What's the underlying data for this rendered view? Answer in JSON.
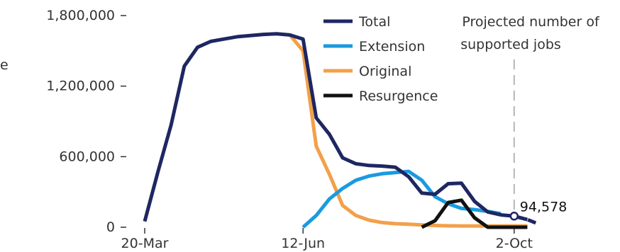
{
  "chart_data": {
    "type": "line",
    "x": [
      "20-Mar",
      "27-Mar",
      "03-Apr",
      "10-Apr",
      "17-Apr",
      "24-Apr",
      "01-May",
      "08-May",
      "15-May",
      "22-May",
      "29-May",
      "05-Jun",
      "12-Jun",
      "19-Jun",
      "26-Jun",
      "03-Jul",
      "10-Jul",
      "17-Jul",
      "24-Jul",
      "31-Jul",
      "07-Aug",
      "14-Aug",
      "21-Aug",
      "28-Aug",
      "04-Sep",
      "11-Sep",
      "18-Sep",
      "25-Sep",
      "02-Oct",
      "09-Oct",
      "16-Oct"
    ],
    "x_tick_labels": [
      "20-Mar",
      "12-Jun",
      "2-Oct"
    ],
    "ylim": [
      0,
      1800000
    ],
    "y_ticks": [
      0,
      600000,
      1200000,
      1800000
    ],
    "y_tick_labels": [
      "0",
      "600,000",
      "1,200,000",
      "1,800,000"
    ],
    "ylabel_fragment": "e",
    "series": [
      {
        "name": "Total",
        "color": "#1e2761",
        "style": "solid",
        "values": [
          50000,
          470000,
          870000,
          1370000,
          1530000,
          1580000,
          1600000,
          1620000,
          1630000,
          1640000,
          1645000,
          1635000,
          1600000,
          930000,
          790000,
          590000,
          540000,
          525000,
          520000,
          510000,
          430000,
          290000,
          280000,
          370000,
          375000,
          220000,
          130000,
          105000,
          94578,
          65000,
          null
        ]
      },
      {
        "name": "Extension",
        "color": "#1a9ae0",
        "style": "solid",
        "values": [
          null,
          null,
          null,
          null,
          null,
          null,
          null,
          null,
          null,
          null,
          null,
          null,
          0,
          100000,
          240000,
          330000,
          400000,
          435000,
          455000,
          465000,
          475000,
          400000,
          260000,
          200000,
          160000,
          150000,
          135000,
          115000,
          null,
          null,
          null
        ]
      },
      {
        "name": "Original",
        "color": "#f2a04a",
        "style": "solid",
        "values": [
          null,
          null,
          null,
          null,
          null,
          null,
          null,
          null,
          null,
          null,
          null,
          1635000,
          1500000,
          690000,
          450000,
          185000,
          100000,
          60000,
          40000,
          30000,
          25000,
          20000,
          15000,
          12000,
          10000,
          10000,
          10000,
          10000,
          10000,
          10000,
          null
        ]
      },
      {
        "name": "Resurgence",
        "color": "#111111",
        "style": "solid",
        "values": [
          null,
          null,
          null,
          null,
          null,
          null,
          null,
          null,
          null,
          null,
          null,
          null,
          null,
          null,
          null,
          null,
          null,
          null,
          null,
          null,
          null,
          0,
          55000,
          210000,
          230000,
          80000,
          0,
          0,
          0,
          0,
          null
        ]
      },
      {
        "name": "",
        "color": "#1e2761",
        "style": "dashed",
        "values": [
          null,
          null,
          null,
          null,
          null,
          null,
          null,
          null,
          null,
          null,
          null,
          null,
          null,
          null,
          null,
          null,
          null,
          null,
          null,
          null,
          null,
          null,
          null,
          null,
          null,
          null,
          null,
          null,
          94578,
          65000,
          20000
        ]
      }
    ],
    "annotation": {
      "text_line1": "Projected number of",
      "text_line2": "supported jobs",
      "at_x": "02-Oct"
    },
    "point_label": {
      "x": "02-Oct",
      "value": 94578,
      "text": "94,578"
    },
    "legend": {
      "placement": "top-center",
      "entries": [
        {
          "label": "Total",
          "color": "#1e2761"
        },
        {
          "label": "Extension",
          "color": "#1a9ae0"
        },
        {
          "label": "Original",
          "color": "#f2a04a"
        },
        {
          "label": "Resurgence",
          "color": "#111111"
        }
      ]
    },
    "grid": false
  }
}
